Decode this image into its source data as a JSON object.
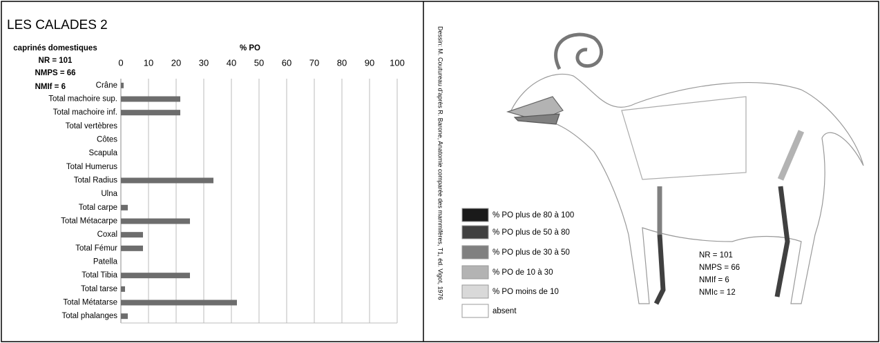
{
  "chart_data": {
    "type": "hbar",
    "title": "LES CALADES 2",
    "subtitle": [
      "caprinés domestiques",
      "NR = 101",
      "NMPS = 66",
      "NMIf = 6"
    ],
    "x_label": "% PO",
    "categories": [
      "Crâne",
      "Total machoire sup.",
      "Total machoire inf.",
      "Total vertèbres",
      "Côtes",
      "Scapula",
      "Total Humerus",
      "Total Radius",
      "Ulna",
      "Total carpe",
      "Total Métacarpe",
      "Coxal",
      "Total Fémur",
      "Patella",
      "Total Tibia",
      "Total tarse",
      "Total Métatarse",
      "Total phalanges"
    ],
    "values": [
      1,
      21.5,
      21.5,
      0,
      0,
      0,
      0,
      33.5,
      0,
      2.5,
      25,
      8,
      8,
      0,
      25,
      1.5,
      42,
      2.5
    ],
    "color": "#6d6d6d",
    "xlim": [
      0,
      100
    ],
    "xticks": [
      0,
      10,
      20,
      30,
      40,
      50,
      60,
      70,
      80,
      90,
      100
    ],
    "grid": true
  },
  "figure": {
    "credit": "Dessin: M. Coutureau d'après R. Barone, Anatomie comparée des mammifères, T1, éd. Vigot, 1976",
    "legend": [
      {
        "label": "% PO plus de 80 à 100",
        "color": "#1a1a1a"
      },
      {
        "label": "% PO  plus de 50 à 80",
        "color": "#404040"
      },
      {
        "label": "% PO plus de 30 à 50",
        "color": "#808080"
      },
      {
        "label": "% PO de 10 à 30",
        "color": "#b3b3b3"
      },
      {
        "label": "% PO moins de 10",
        "color": "#d9d9d9"
      },
      {
        "label": "absent",
        "color": "#ffffff"
      }
    ],
    "stats": [
      "NR = 101",
      "NMPS = 66",
      "NMIf = 6",
      "NMIc = 12"
    ]
  }
}
